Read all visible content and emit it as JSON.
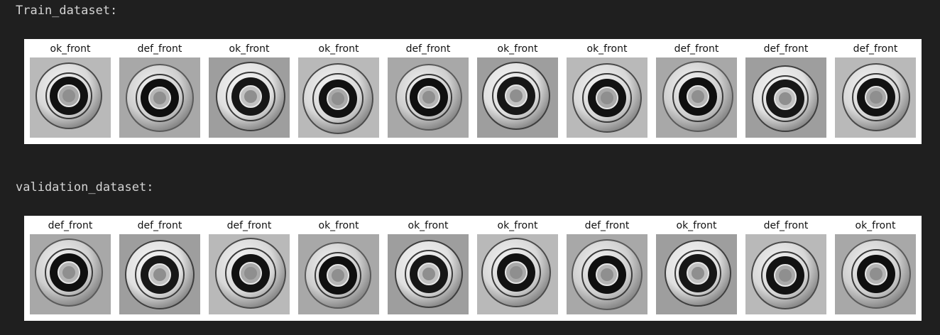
{
  "sections": [
    {
      "label": "Train_dataset:",
      "images": [
        {
          "title": "ok_front"
        },
        {
          "title": "def_front"
        },
        {
          "title": "ok_front"
        },
        {
          "title": "ok_front"
        },
        {
          "title": "def_front"
        },
        {
          "title": "ok_front"
        },
        {
          "title": "ok_front"
        },
        {
          "title": "def_front"
        },
        {
          "title": "def_front"
        },
        {
          "title": "def_front"
        }
      ]
    },
    {
      "label": "validation_dataset:",
      "images": [
        {
          "title": "def_front"
        },
        {
          "title": "def_front"
        },
        {
          "title": "def_front"
        },
        {
          "title": "ok_front"
        },
        {
          "title": "ok_front"
        },
        {
          "title": "ok_front"
        },
        {
          "title": "def_front"
        },
        {
          "title": "ok_front"
        },
        {
          "title": "def_front"
        },
        {
          "title": "ok_front"
        }
      ]
    }
  ]
}
